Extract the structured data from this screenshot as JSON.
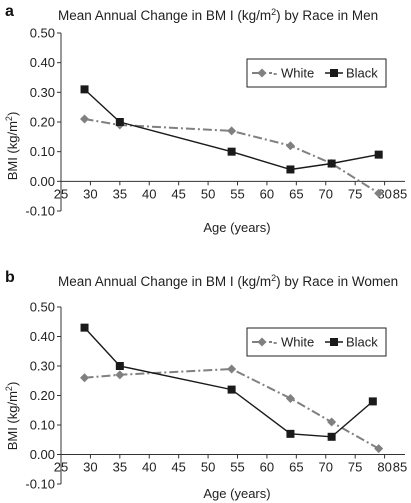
{
  "chart_data": [
    {
      "panel": "a",
      "type": "line",
      "title": "Mean Annual Change in BM I (kg/m²) by Race in Men",
      "title_parts": [
        "Mean Annual Change in BM I (kg/m",
        "2",
        ") by Race in Men"
      ],
      "xlabel": "Age (years)",
      "ylabel_parts": [
        "BMI (kg/m",
        "2",
        ")"
      ],
      "xlim": [
        25,
        85
      ],
      "ylim": [
        -0.1,
        0.5
      ],
      "x_ticks": [
        "25",
        "30",
        "35",
        "40",
        "45",
        "50",
        "55",
        "60",
        "65",
        "70",
        "75",
        "80",
        "85"
      ],
      "y_ticks": [
        "0.50",
        "0.40",
        "0.30",
        "0.20",
        "0.10",
        "0.00",
        "-0.10"
      ],
      "grid": false,
      "legend_position": "top-right",
      "series": [
        {
          "name": "White",
          "legend_label": "- White",
          "color": "#808080",
          "marker": "diamond",
          "dash": "dash-dot",
          "x": [
            29,
            35,
            54,
            64,
            71,
            79
          ],
          "y": [
            0.21,
            0.19,
            0.17,
            0.12,
            0.06,
            -0.04
          ]
        },
        {
          "name": "Black",
          "legend_label": "Black",
          "color": "#1a1a1a",
          "marker": "square",
          "dash": "solid",
          "x": [
            29,
            35,
            54,
            64,
            71,
            79
          ],
          "y": [
            0.31,
            0.2,
            0.1,
            0.04,
            0.06,
            0.09
          ]
        }
      ]
    },
    {
      "panel": "b",
      "type": "line",
      "title": "Mean Annual Change in BM I (kg/m²) by Race in Women",
      "title_parts": [
        "Mean Annual Change in BM I (kg/m",
        "2",
        ") by Race in Women"
      ],
      "xlabel": "Age (years)",
      "ylabel_parts": [
        "BMI (kg/m",
        "2",
        ")"
      ],
      "xlim": [
        25,
        85
      ],
      "ylim": [
        -0.1,
        0.5
      ],
      "x_ticks": [
        "25",
        "30",
        "35",
        "40",
        "45",
        "50",
        "55",
        "60",
        "65",
        "70",
        "75",
        "80",
        "85"
      ],
      "y_ticks": [
        "0.50",
        "0.40",
        "0.30",
        "0.20",
        "0.10",
        "0.00",
        "-0.10"
      ],
      "grid": false,
      "legend_position": "top-right",
      "series": [
        {
          "name": "White",
          "legend_label": "- White",
          "color": "#808080",
          "marker": "diamond",
          "dash": "dash-dot",
          "x": [
            29,
            35,
            54,
            64,
            71,
            79
          ],
          "y": [
            0.26,
            0.27,
            0.29,
            0.19,
            0.11,
            0.02
          ]
        },
        {
          "name": "Black",
          "legend_label": "Black",
          "color": "#1a1a1a",
          "marker": "square",
          "dash": "solid",
          "x": [
            29,
            35,
            54,
            64,
            71,
            78
          ],
          "y": [
            0.43,
            0.3,
            0.22,
            0.07,
            0.06,
            0.18
          ]
        }
      ]
    }
  ]
}
